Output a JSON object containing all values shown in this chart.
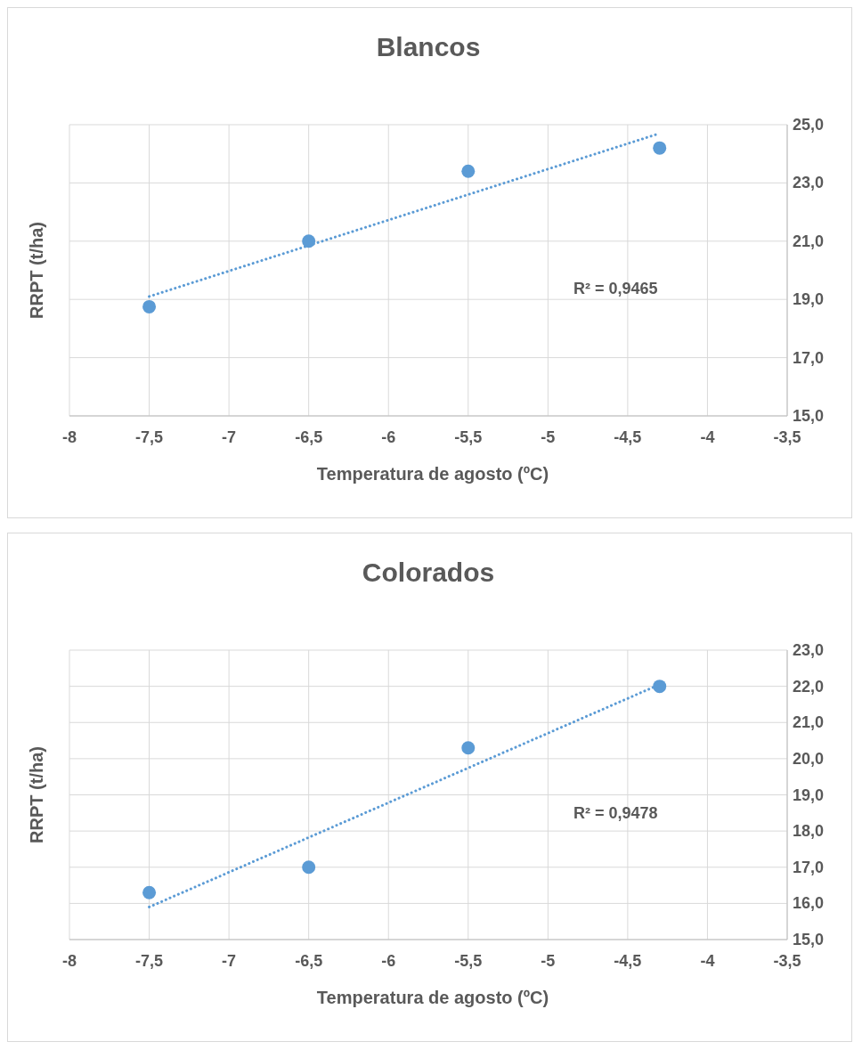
{
  "chart_data": [
    {
      "type": "scatter",
      "title": "Blancos",
      "xlabel": "Temperatura de agosto (ºC)",
      "ylabel": "RRPT (t/ha)",
      "annotations": [
        "R² = 0,9465"
      ],
      "grid": true,
      "marker": "circle",
      "xlim": [
        -8,
        -3.5
      ],
      "xticks": [
        -8,
        {
          "value": -7.5,
          "label": "-7,5"
        },
        -7,
        {
          "value": -6.5,
          "label": "-6,5"
        },
        -6,
        {
          "value": -5.5,
          "label": "-5,5"
        },
        -5,
        {
          "value": -4.5,
          "label": "-4,5"
        },
        -4,
        {
          "value": -3.5,
          "label": "-3,5"
        }
      ],
      "ylim": [
        15,
        25
      ],
      "yticks": [
        {
          "value": 15,
          "label": "15,0"
        },
        {
          "value": 17,
          "label": "17,0"
        },
        {
          "value": 19,
          "label": "19,0"
        },
        {
          "value": 21,
          "label": "21,0"
        },
        {
          "value": 23,
          "label": "23,0"
        },
        {
          "value": 25,
          "label": "25,0"
        }
      ],
      "series": [
        {
          "color": "#5b9bd5",
          "x": [
            -7.5,
            -6.5,
            -5.5,
            -4.3
          ],
          "values": [
            18.75,
            21.0,
            23.4,
            24.2
          ]
        },
        {
          "type": "line",
          "color": "#5b9bd5",
          "line_style": "dotted",
          "marker": "none",
          "x": [
            -7.5,
            -4.3
          ],
          "values": [
            19.1,
            24.7
          ]
        }
      ]
    },
    {
      "type": "scatter",
      "title": "Colorados",
      "xlabel": "Temperatura de agosto (ºC)",
      "ylabel": "RRPT (t/ha)",
      "annotations": [
        "R² = 0,9478"
      ],
      "grid": true,
      "marker": "circle",
      "xlim": [
        -8,
        -3.5
      ],
      "xticks": [
        -8,
        {
          "value": -7.5,
          "label": "-7,5"
        },
        -7,
        {
          "value": -6.5,
          "label": "-6,5"
        },
        -6,
        {
          "value": -5.5,
          "label": "-5,5"
        },
        -5,
        {
          "value": -4.5,
          "label": "-4,5"
        },
        -4,
        {
          "value": -3.5,
          "label": "-3,5"
        }
      ],
      "ylim": [
        15,
        23
      ],
      "yticks": [
        {
          "value": 15,
          "label": "15,0"
        },
        {
          "value": 16,
          "label": "16,0"
        },
        {
          "value": 17,
          "label": "17,0"
        },
        {
          "value": 18,
          "label": "18,0"
        },
        {
          "value": 19,
          "label": "19,0"
        },
        {
          "value": 20,
          "label": "20,0"
        },
        {
          "value": 21,
          "label": "21,0"
        },
        {
          "value": 22,
          "label": "22,0"
        },
        {
          "value": 23,
          "label": "23,0"
        }
      ],
      "series": [
        {
          "color": "#5b9bd5",
          "x": [
            -7.5,
            -6.5,
            -5.5,
            -4.3
          ],
          "values": [
            16.3,
            17.0,
            20.3,
            22.0
          ]
        },
        {
          "type": "line",
          "color": "#5b9bd5",
          "line_style": "dotted",
          "marker": "none",
          "x": [
            -7.5,
            -4.3
          ],
          "values": [
            15.9,
            22.05
          ]
        }
      ]
    }
  ]
}
